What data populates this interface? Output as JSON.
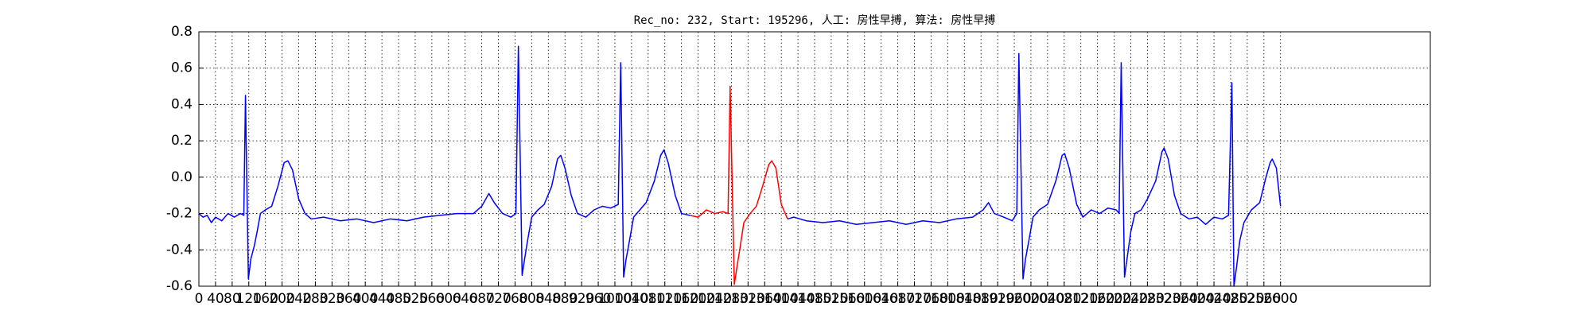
{
  "chart_data": {
    "type": "line",
    "title": "Rec_no: 232, Start: 195296, 人工: 房性早搏, 算法: 房性早搏",
    "x": [
      0,
      10,
      20,
      30,
      40,
      55,
      70,
      85,
      100,
      108,
      112,
      119,
      125,
      133,
      140,
      148,
      160,
      175,
      190,
      205,
      214,
      225,
      240,
      255,
      270,
      300,
      340,
      380,
      420,
      460,
      500,
      540,
      580,
      620,
      660,
      680,
      697,
      710,
      730,
      750,
      762,
      768,
      777,
      783,
      790,
      800,
      815,
      830,
      848,
      862,
      870,
      880,
      895,
      910,
      930,
      950,
      970,
      990,
      1008,
      1014,
      1021,
      1027,
      1035,
      1045,
      1060,
      1075,
      1095,
      1110,
      1118,
      1128,
      1145,
      1160,
      1180,
      1200,
      1220,
      1240,
      1260,
      1272,
      1277,
      1287,
      1293,
      1300,
      1310,
      1325,
      1340,
      1355,
      1370,
      1377,
      1387,
      1400,
      1415,
      1430,
      1460,
      1500,
      1540,
      1580,
      1620,
      1660,
      1700,
      1740,
      1780,
      1820,
      1860,
      1885,
      1898,
      1912,
      1935,
      1955,
      1966,
      1971,
      1981,
      1987,
      1995,
      2005,
      2020,
      2040,
      2060,
      2075,
      2081,
      2092,
      2110,
      2125,
      2145,
      2165,
      2185,
      2205,
      2212,
      2217,
      2225,
      2231,
      2240,
      2250,
      2265,
      2280,
      2300,
      2315,
      2320,
      2330,
      2345,
      2360,
      2380,
      2400,
      2420,
      2440,
      2460,
      2475,
      2483,
      2488,
      2494,
      2502,
      2512,
      2530,
      2550,
      2565,
      2575,
      2580,
      2590,
      2600
    ],
    "series": [
      {
        "color": "#0000ff",
        "values": [
          -0.2,
          -0.22,
          -0.21,
          -0.25,
          -0.22,
          -0.24,
          -0.2,
          -0.22,
          -0.2,
          -0.21,
          0.45,
          -0.56,
          -0.45,
          -0.38,
          -0.3,
          -0.2,
          -0.18,
          -0.16,
          -0.05,
          0.08,
          0.09,
          0.04,
          -0.12,
          -0.2,
          -0.23,
          -0.22,
          -0.24,
          -0.23,
          -0.25,
          -0.23,
          -0.24,
          -0.22,
          -0.21,
          -0.2,
          -0.2,
          -0.16,
          -0.09,
          -0.14,
          -0.2,
          -0.22,
          -0.2,
          0.72,
          -0.54,
          -0.45,
          -0.35,
          -0.22,
          -0.18,
          -0.15,
          -0.05,
          0.1,
          0.12,
          0.05,
          -0.1,
          -0.2,
          -0.22,
          -0.18,
          -0.16,
          -0.17,
          -0.15,
          0.63,
          -0.55,
          -0.45,
          -0.35,
          -0.22,
          -0.18,
          -0.14,
          -0.02,
          0.12,
          0.15,
          0.08,
          -0.1,
          -0.2,
          -0.21,
          null,
          null,
          null,
          null,
          null,
          null,
          null,
          null,
          null,
          null,
          null,
          null,
          null,
          null,
          null,
          null,
          null,
          -0.23,
          -0.22,
          -0.24,
          -0.25,
          -0.24,
          -0.26,
          -0.25,
          -0.24,
          -0.26,
          -0.24,
          -0.25,
          -0.23,
          -0.22,
          -0.18,
          -0.14,
          -0.2,
          -0.22,
          -0.24,
          -0.2,
          0.68,
          -0.56,
          -0.45,
          -0.35,
          -0.22,
          -0.18,
          -0.15,
          -0.02,
          0.12,
          0.13,
          0.05,
          -0.15,
          -0.22,
          -0.18,
          -0.2,
          -0.17,
          -0.18,
          -0.2,
          0.63,
          -0.55,
          -0.45,
          -0.3,
          -0.2,
          -0.18,
          -0.12,
          -0.02,
          0.14,
          0.16,
          0.1,
          -0.1,
          -0.2,
          -0.23,
          -0.22,
          -0.26,
          -0.22,
          -0.23,
          -0.21,
          0.52,
          -0.6,
          -0.5,
          -0.35,
          -0.25,
          -0.18,
          -0.14,
          0.0,
          0.08,
          0.1,
          0.05,
          -0.16
        ]
      },
      {
        "color": "#ff0000",
        "values": [
          null,
          null,
          null,
          null,
          null,
          null,
          null,
          null,
          null,
          null,
          null,
          null,
          null,
          null,
          null,
          null,
          null,
          null,
          null,
          null,
          null,
          null,
          null,
          null,
          null,
          null,
          null,
          null,
          null,
          null,
          null,
          null,
          null,
          null,
          null,
          null,
          null,
          null,
          null,
          null,
          null,
          null,
          null,
          null,
          null,
          null,
          null,
          null,
          null,
          null,
          null,
          null,
          null,
          null,
          null,
          null,
          null,
          null,
          null,
          null,
          null,
          null,
          null,
          null,
          null,
          null,
          null,
          null,
          null,
          null,
          null,
          null,
          -0.21,
          -0.22,
          -0.18,
          -0.2,
          -0.19,
          -0.2,
          0.5,
          -0.59,
          -0.5,
          -0.4,
          -0.25,
          -0.2,
          -0.16,
          -0.05,
          0.07,
          0.09,
          0.05,
          -0.15,
          -0.23,
          null,
          null,
          null,
          null,
          null,
          null,
          null,
          null,
          null,
          null,
          null,
          null,
          null,
          null,
          null,
          null,
          null,
          null,
          null,
          null,
          null,
          null,
          null,
          null,
          null,
          null,
          null,
          null,
          null,
          null,
          null,
          null,
          null,
          null,
          null,
          null,
          null,
          null,
          null,
          null,
          null,
          null,
          null,
          null,
          null,
          null,
          null,
          null,
          null,
          null,
          null,
          null,
          null,
          null,
          null,
          null,
          null,
          null,
          null,
          null,
          null,
          null,
          null,
          null,
          null,
          null,
          null
        ]
      }
    ],
    "xlim": [
      0,
      2960
    ],
    "xticks": [
      0,
      40,
      80,
      120,
      160,
      200,
      240,
      280,
      320,
      360,
      400,
      440,
      480,
      520,
      560,
      600,
      640,
      680,
      720,
      760,
      800,
      840,
      880,
      920,
      960,
      1000,
      1040,
      1080,
      1120,
      1160,
      1200,
      1240,
      1280,
      1320,
      1360,
      1400,
      1440,
      1480,
      1520,
      1560,
      1600,
      1640,
      1680,
      1720,
      1760,
      1800,
      1840,
      1880,
      1920,
      1960,
      2000,
      2040,
      2080,
      2120,
      2160,
      2200,
      2240,
      2280,
      2320,
      2360,
      2400,
      2440,
      2480,
      2520,
      2560,
      2600
    ],
    "ylim": [
      -0.6,
      0.8
    ],
    "yticks": [
      {
        "value": -0.6,
        "label": "-0.6"
      },
      {
        "value": -0.4,
        "label": "-0.4"
      },
      {
        "value": -0.2,
        "label": "-0.2"
      },
      {
        "value": 0,
        "label": "0.0"
      },
      {
        "value": 0.2,
        "label": "0.2"
      },
      {
        "value": 0.4,
        "label": "0.4"
      },
      {
        "value": 0.6,
        "label": "0.6"
      },
      {
        "value": 0.8,
        "label": "0.8"
      }
    ],
    "grid": true
  }
}
